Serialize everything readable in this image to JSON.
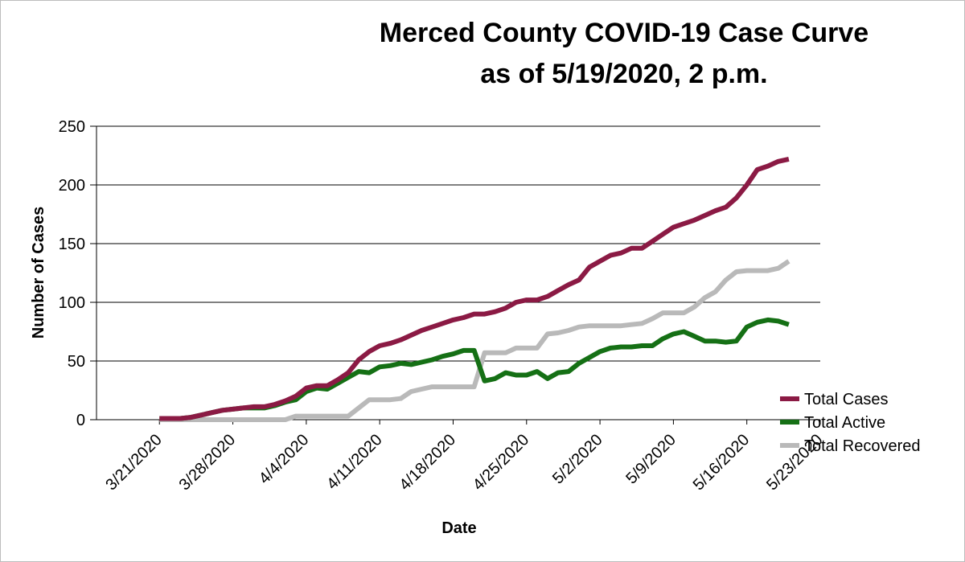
{
  "chart_data": {
    "type": "line",
    "title": "Merced County COVID-19 Case Curve",
    "subtitle": "as of 5/19/2020, 2 p.m.",
    "xlabel": "Date",
    "ylabel": "Number of Cases",
    "ylim": [
      0,
      250
    ],
    "y_ticks": [
      0,
      50,
      100,
      150,
      200,
      250
    ],
    "x_ticks": [
      "3/21/2020",
      "3/28/2020",
      "4/4/2020",
      "4/11/2020",
      "4/18/2020",
      "4/25/2020",
      "5/2/2020",
      "5/9/2020",
      "5/16/2020",
      "5/23/2020"
    ],
    "x_range": [
      "3/15/2020",
      "5/23/2020"
    ],
    "grid": "horizontal",
    "legend_position": "bottom-right",
    "series": [
      {
        "name": "Total Cases",
        "color": "#8b1a44",
        "points": [
          [
            "3/21/2020",
            1
          ],
          [
            "3/22/2020",
            1
          ],
          [
            "3/23/2020",
            1
          ],
          [
            "3/24/2020",
            2
          ],
          [
            "3/25/2020",
            4
          ],
          [
            "3/26/2020",
            6
          ],
          [
            "3/27/2020",
            8
          ],
          [
            "3/28/2020",
            9
          ],
          [
            "3/29/2020",
            10
          ],
          [
            "3/30/2020",
            11
          ],
          [
            "3/31/2020",
            11
          ],
          [
            "4/1/2020",
            13
          ],
          [
            "4/2/2020",
            16
          ],
          [
            "4/3/2020",
            20
          ],
          [
            "4/4/2020",
            27
          ],
          [
            "4/5/2020",
            29
          ],
          [
            "4/6/2020",
            29
          ],
          [
            "4/7/2020",
            34
          ],
          [
            "4/8/2020",
            40
          ],
          [
            "4/9/2020",
            51
          ],
          [
            "4/10/2020",
            58
          ],
          [
            "4/11/2020",
            63
          ],
          [
            "4/12/2020",
            65
          ],
          [
            "4/13/2020",
            68
          ],
          [
            "4/14/2020",
            72
          ],
          [
            "4/15/2020",
            76
          ],
          [
            "4/16/2020",
            79
          ],
          [
            "4/17/2020",
            82
          ],
          [
            "4/18/2020",
            85
          ],
          [
            "4/19/2020",
            87
          ],
          [
            "4/20/2020",
            90
          ],
          [
            "4/21/2020",
            90
          ],
          [
            "4/22/2020",
            92
          ],
          [
            "4/23/2020",
            95
          ],
          [
            "4/24/2020",
            100
          ],
          [
            "4/25/2020",
            102
          ],
          [
            "4/26/2020",
            102
          ],
          [
            "4/27/2020",
            105
          ],
          [
            "4/28/2020",
            110
          ],
          [
            "4/29/2020",
            115
          ],
          [
            "4/30/2020",
            119
          ],
          [
            "5/1/2020",
            130
          ],
          [
            "5/2/2020",
            135
          ],
          [
            "5/3/2020",
            140
          ],
          [
            "5/4/2020",
            142
          ],
          [
            "5/5/2020",
            146
          ],
          [
            "5/6/2020",
            146
          ],
          [
            "5/7/2020",
            152
          ],
          [
            "5/8/2020",
            158
          ],
          [
            "5/9/2020",
            164
          ],
          [
            "5/10/2020",
            167
          ],
          [
            "5/11/2020",
            170
          ],
          [
            "5/12/2020",
            174
          ],
          [
            "5/13/2020",
            178
          ],
          [
            "5/14/2020",
            181
          ],
          [
            "5/15/2020",
            189
          ],
          [
            "5/16/2020",
            200
          ],
          [
            "5/17/2020",
            213
          ],
          [
            "5/18/2020",
            216
          ],
          [
            "5/19/2020",
            220
          ],
          [
            "5/20/2020",
            222
          ]
        ]
      },
      {
        "name": "Total Active",
        "color": "#157015",
        "points": [
          [
            "3/21/2020",
            1
          ],
          [
            "3/22/2020",
            1
          ],
          [
            "3/23/2020",
            1
          ],
          [
            "3/24/2020",
            2
          ],
          [
            "3/25/2020",
            4
          ],
          [
            "3/26/2020",
            6
          ],
          [
            "3/27/2020",
            8
          ],
          [
            "3/28/2020",
            9
          ],
          [
            "3/29/2020",
            10
          ],
          [
            "3/30/2020",
            10
          ],
          [
            "3/31/2020",
            10
          ],
          [
            "4/1/2020",
            12
          ],
          [
            "4/2/2020",
            15
          ],
          [
            "4/3/2020",
            17
          ],
          [
            "4/4/2020",
            24
          ],
          [
            "4/5/2020",
            27
          ],
          [
            "4/6/2020",
            26
          ],
          [
            "4/7/2020",
            31
          ],
          [
            "4/8/2020",
            36
          ],
          [
            "4/9/2020",
            41
          ],
          [
            "4/10/2020",
            40
          ],
          [
            "4/11/2020",
            45
          ],
          [
            "4/12/2020",
            46
          ],
          [
            "4/13/2020",
            48
          ],
          [
            "4/14/2020",
            47
          ],
          [
            "4/15/2020",
            49
          ],
          [
            "4/16/2020",
            51
          ],
          [
            "4/17/2020",
            54
          ],
          [
            "4/18/2020",
            56
          ],
          [
            "4/19/2020",
            59
          ],
          [
            "4/20/2020",
            59
          ],
          [
            "4/21/2020",
            33
          ],
          [
            "4/22/2020",
            35
          ],
          [
            "4/23/2020",
            40
          ],
          [
            "4/24/2020",
            38
          ],
          [
            "4/25/2020",
            38
          ],
          [
            "4/26/2020",
            41
          ],
          [
            "4/27/2020",
            35
          ],
          [
            "4/28/2020",
            40
          ],
          [
            "4/29/2020",
            41
          ],
          [
            "4/30/2020",
            48
          ],
          [
            "5/1/2020",
            53
          ],
          [
            "5/2/2020",
            58
          ],
          [
            "5/3/2020",
            61
          ],
          [
            "5/4/2020",
            62
          ],
          [
            "5/5/2020",
            62
          ],
          [
            "5/6/2020",
            63
          ],
          [
            "5/7/2020",
            63
          ],
          [
            "5/8/2020",
            69
          ],
          [
            "5/9/2020",
            73
          ],
          [
            "5/10/2020",
            75
          ],
          [
            "5/11/2020",
            71
          ],
          [
            "5/12/2020",
            67
          ],
          [
            "5/13/2020",
            67
          ],
          [
            "5/14/2020",
            66
          ],
          [
            "5/15/2020",
            67
          ],
          [
            "5/16/2020",
            79
          ],
          [
            "5/17/2020",
            83
          ],
          [
            "5/18/2020",
            85
          ],
          [
            "5/19/2020",
            84
          ],
          [
            "5/20/2020",
            81
          ]
        ]
      },
      {
        "name": "Total Recovered",
        "color": "#b9b9b9",
        "points": [
          [
            "3/21/2020",
            0
          ],
          [
            "3/22/2020",
            0
          ],
          [
            "3/23/2020",
            0
          ],
          [
            "3/24/2020",
            0
          ],
          [
            "3/25/2020",
            0
          ],
          [
            "3/26/2020",
            0
          ],
          [
            "3/27/2020",
            0
          ],
          [
            "3/28/2020",
            0
          ],
          [
            "3/29/2020",
            0
          ],
          [
            "3/30/2020",
            0
          ],
          [
            "3/31/2020",
            0
          ],
          [
            "4/1/2020",
            0
          ],
          [
            "4/2/2020",
            0
          ],
          [
            "4/3/2020",
            3
          ],
          [
            "4/4/2020",
            3
          ],
          [
            "4/5/2020",
            3
          ],
          [
            "4/6/2020",
            3
          ],
          [
            "4/7/2020",
            3
          ],
          [
            "4/8/2020",
            3
          ],
          [
            "4/9/2020",
            10
          ],
          [
            "4/10/2020",
            17
          ],
          [
            "4/11/2020",
            17
          ],
          [
            "4/12/2020",
            17
          ],
          [
            "4/13/2020",
            18
          ],
          [
            "4/14/2020",
            24
          ],
          [
            "4/15/2020",
            26
          ],
          [
            "4/16/2020",
            28
          ],
          [
            "4/17/2020",
            28
          ],
          [
            "4/18/2020",
            28
          ],
          [
            "4/19/2020",
            28
          ],
          [
            "4/20/2020",
            28
          ],
          [
            "4/21/2020",
            57
          ],
          [
            "4/22/2020",
            57
          ],
          [
            "4/23/2020",
            57
          ],
          [
            "4/24/2020",
            61
          ],
          [
            "4/25/2020",
            61
          ],
          [
            "4/26/2020",
            61
          ],
          [
            "4/27/2020",
            73
          ],
          [
            "4/28/2020",
            74
          ],
          [
            "4/29/2020",
            76
          ],
          [
            "4/30/2020",
            79
          ],
          [
            "5/1/2020",
            80
          ],
          [
            "5/2/2020",
            80
          ],
          [
            "5/3/2020",
            80
          ],
          [
            "5/4/2020",
            80
          ],
          [
            "5/5/2020",
            81
          ],
          [
            "5/6/2020",
            82
          ],
          [
            "5/7/2020",
            86
          ],
          [
            "5/8/2020",
            91
          ],
          [
            "5/9/2020",
            91
          ],
          [
            "5/10/2020",
            91
          ],
          [
            "5/11/2020",
            96
          ],
          [
            "5/12/2020",
            104
          ],
          [
            "5/13/2020",
            109
          ],
          [
            "5/14/2020",
            119
          ],
          [
            "5/15/2020",
            126
          ],
          [
            "5/16/2020",
            127
          ],
          [
            "5/17/2020",
            127
          ],
          [
            "5/18/2020",
            127
          ],
          [
            "5/19/2020",
            129
          ],
          [
            "5/20/2020",
            135
          ]
        ]
      }
    ]
  }
}
